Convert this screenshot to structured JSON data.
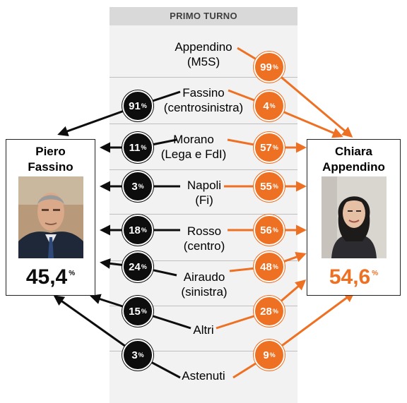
{
  "header": {
    "title": "PRIMO TURNO"
  },
  "candidates": {
    "left": {
      "name_line1": "Piero",
      "name_line2": "Fassino",
      "result": "45,4",
      "result_unit": "%",
      "color": "#000000"
    },
    "right": {
      "name_line1": "Chiara",
      "name_line2": "Appendino",
      "result": "54,6",
      "result_unit": "%",
      "color": "#ee7022"
    }
  },
  "rows": [
    {
      "line1": "Appendino",
      "line2": "(M5S)",
      "to_fassino": null,
      "to_appendino": "99"
    },
    {
      "line1": "Fassino",
      "line2": "(centrosinistra)",
      "to_fassino": "91",
      "to_appendino": "4"
    },
    {
      "line1": "Morano",
      "line2": "(Lega e FdI)",
      "to_fassino": "11",
      "to_appendino": "57"
    },
    {
      "line1": "Napoli",
      "line2": "(Fi)",
      "to_fassino": "3",
      "to_appendino": "55"
    },
    {
      "line1": "Rosso",
      "line2": "(centro)",
      "to_fassino": "18",
      "to_appendino": "56"
    },
    {
      "line1": "Airaudo",
      "line2": "(sinistra)",
      "to_fassino": "24",
      "to_appendino": "48"
    },
    {
      "line1": "Altri",
      "line2": "",
      "to_fassino": "15",
      "to_appendino": "28"
    },
    {
      "line1": "Astenuti",
      "line2": "",
      "to_fassino": "3",
      "to_appendino": "9"
    }
  ],
  "pct_symbol": "%",
  "colors": {
    "fassino": "#0d0d0d",
    "appendino": "#ee7022",
    "column_bg": "#f2f2f2",
    "header_bg": "#d9d9d9"
  }
}
